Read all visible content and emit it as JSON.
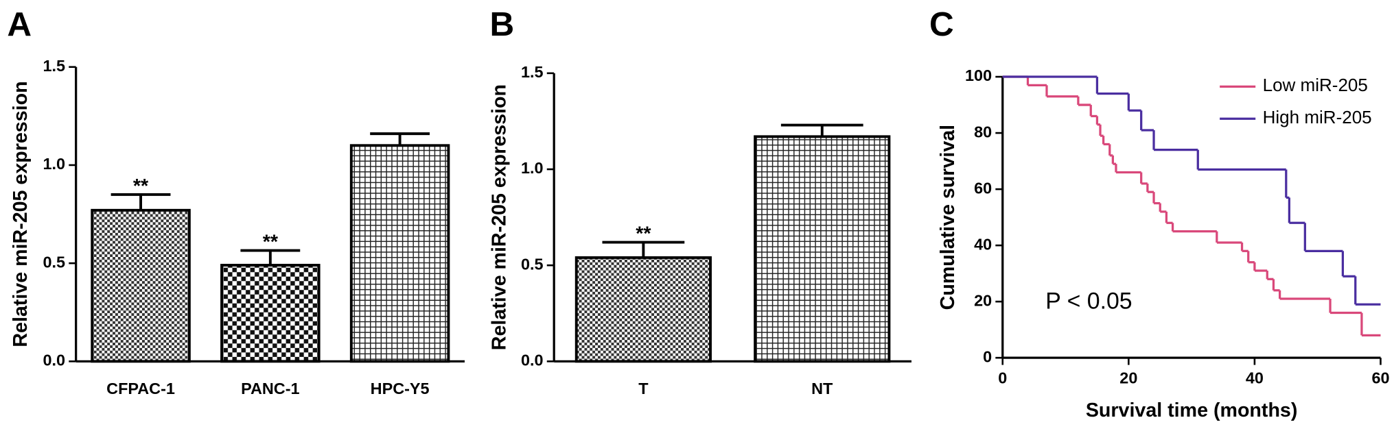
{
  "chart_data": [
    {
      "type": "bar",
      "panel_label": "A",
      "y_label": "Relative miR-205 expression",
      "categories": [
        "CFPAC-1",
        "PANC-1",
        "HPC-Y5"
      ],
      "values": [
        0.77,
        0.49,
        1.1
      ],
      "errors": [
        0.08,
        0.075,
        0.06
      ],
      "significance": [
        "**",
        "**",
        null
      ],
      "patterns": [
        "checker",
        "checker-coarse",
        "grid"
      ],
      "color": "#000000",
      "ylim": [
        0,
        1.5
      ],
      "yticks": [
        {
          "value": 0,
          "label": "0.0"
        },
        0.5,
        {
          "value": 1,
          "label": "1.0"
        },
        1.5
      ]
    },
    {
      "type": "bar",
      "panel_label": "B",
      "y_label": "Relative miR-205 expression",
      "categories": [
        "T",
        "NT"
      ],
      "values": [
        0.54,
        1.17
      ],
      "errors": [
        0.08,
        0.06
      ],
      "significance": [
        "**",
        null
      ],
      "patterns": [
        "checker",
        "grid"
      ],
      "color": "#000000",
      "ylim": [
        0,
        1.5
      ],
      "yticks": [
        {
          "value": 0,
          "label": "0.0"
        },
        0.5,
        {
          "value": 1,
          "label": "1.0"
        },
        1.5
      ]
    },
    {
      "type": "line",
      "step": "post",
      "panel_label": "C",
      "x_label": "Survival time (months)",
      "y_label": "Cumulative survival",
      "annotation": "P < 0.05",
      "legend": "upper right",
      "series": [
        {
          "name": "Low miR-205",
          "color": "#d9487a",
          "x": [
            0,
            4,
            7,
            12,
            14,
            15,
            15.5,
            16,
            17,
            17.5,
            18,
            22,
            23,
            24,
            25,
            26,
            27,
            34,
            38,
            39,
            40,
            42,
            43,
            44,
            52,
            57,
            60
          ],
          "values": [
            100,
            97,
            93,
            90,
            86,
            83,
            79,
            76,
            72,
            69,
            66,
            62,
            59,
            55,
            52,
            48,
            45,
            41,
            38,
            34,
            31,
            28,
            24,
            21,
            16,
            8,
            8
          ]
        },
        {
          "name": "High miR-205",
          "color": "#4a2ea0",
          "x": [
            0,
            15,
            20,
            22,
            24,
            31,
            45,
            45.5,
            48,
            54,
            56,
            60
          ],
          "values": [
            100,
            94,
            88,
            81,
            74,
            67,
            57,
            48,
            38,
            29,
            19,
            19
          ]
        }
      ],
      "xlim": [
        0,
        60
      ],
      "xticks": [
        0,
        20,
        40,
        60
      ],
      "ylim": [
        0,
        100
      ],
      "yticks": [
        0,
        20,
        40,
        60,
        80,
        100
      ]
    }
  ]
}
